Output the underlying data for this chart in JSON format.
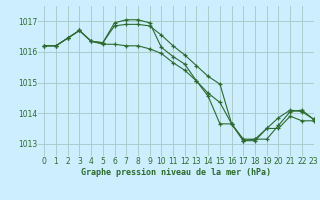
{
  "title": "Graphe pression niveau de la mer (hPa)",
  "bg_color": "#cceeff",
  "grid_color": "#aacccc",
  "line_color": "#2d6a2d",
  "xlim": [
    -0.5,
    23
  ],
  "ylim": [
    1012.6,
    1017.5
  ],
  "yticks": [
    1013,
    1014,
    1015,
    1016,
    1017
  ],
  "xticks": [
    0,
    1,
    2,
    3,
    4,
    5,
    6,
    7,
    8,
    9,
    10,
    11,
    12,
    13,
    14,
    15,
    16,
    17,
    18,
    19,
    20,
    21,
    22,
    23
  ],
  "series": [
    [
      1016.2,
      1016.2,
      1016.45,
      1016.7,
      1016.35,
      1016.3,
      1016.95,
      1017.05,
      1017.05,
      1016.95,
      1016.15,
      1015.85,
      1015.6,
      1015.05,
      1014.65,
      1014.35,
      1013.65,
      1013.15,
      1013.15,
      1013.15,
      1013.6,
      1014.05,
      1014.1,
      1013.8
    ],
    [
      1016.2,
      1016.2,
      1016.45,
      1016.7,
      1016.35,
      1016.25,
      1016.25,
      1016.2,
      1016.2,
      1016.1,
      1015.95,
      1015.65,
      1015.4,
      1015.05,
      1014.55,
      1013.65,
      1013.65,
      1013.1,
      1013.1,
      1013.5,
      1013.5,
      1013.9,
      1013.75,
      1013.75
    ],
    [
      1016.2,
      1016.2,
      1016.45,
      1016.7,
      1016.35,
      1016.3,
      1016.85,
      1016.9,
      1016.9,
      1016.85,
      1016.55,
      1016.2,
      1015.9,
      1015.55,
      1015.2,
      1014.95,
      1013.65,
      1013.1,
      1013.15,
      1013.5,
      1013.85,
      1014.1,
      1014.05,
      1013.8
    ]
  ]
}
